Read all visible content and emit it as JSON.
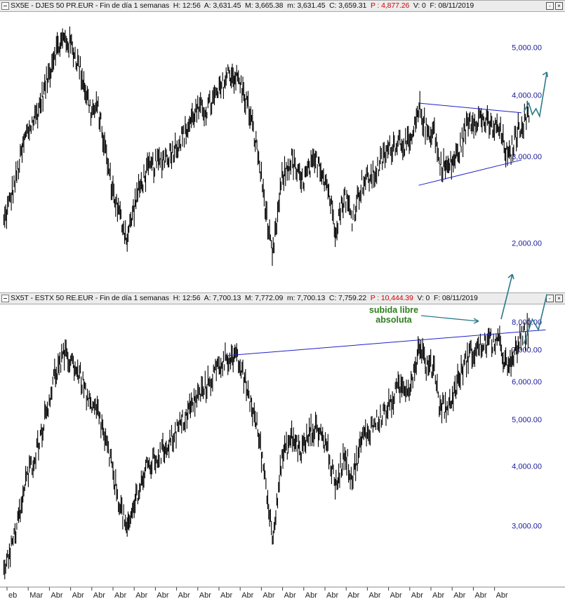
{
  "panels": [
    {
      "symbol": "SX5E",
      "name": "DJES 50 PR.EUR",
      "period": "Fin de día 1 semanas",
      "h_label": "H:",
      "h_value": "12:56",
      "a_label": "A:",
      "a_value": "3,631.45",
      "m_label": "M:",
      "m_value": "3,665.38",
      "mm_label": "m:",
      "mm_value": "3,631.45",
      "c_label": "C:",
      "c_value": "3,659.31",
      "p_label": "P :",
      "p_value": "4,877.26",
      "v_label": "V:",
      "v_value": "0",
      "f_label": "F:",
      "f_value": "08/11/2019",
      "close_btn": "×",
      "menu_btn": "-",
      "yticks": [
        "2,000.00",
        "3,000.00",
        "4,000.00",
        "5,000.00"
      ]
    },
    {
      "symbol": "SX5T",
      "name": "ESTX 50 RE.EUR",
      "period": "Fin de día 1 semanas",
      "h_label": "H:",
      "h_value": "12:56",
      "a_label": "A:",
      "a_value": "7,700.13",
      "m_label": "M:",
      "m_value": "7,772.09",
      "mm_label": "m:",
      "mm_value": "7,700.13",
      "c_label": "C:",
      "c_value": "7,759.22",
      "p_label": "P :",
      "p_value": "10,444.39",
      "v_label": "V:",
      "v_value": "0",
      "f_label": "F:",
      "f_value": "08/11/2019",
      "close_btn": "×",
      "menu_btn": "-",
      "yticks": [
        "3,000.00",
        "4,000.00",
        "5,000.00",
        "6,000.00",
        "7,000.00",
        "8,000.00"
      ]
    }
  ],
  "annotation": {
    "line1": "subida libre",
    "line2": "absoluta"
  },
  "xaxis": [
    "eb",
    "Mar",
    "Abr",
    "Abr",
    "Abr",
    "Abr",
    "Abr",
    "Abr",
    "Abr",
    "Abr",
    "Abr",
    "Abr",
    "Abr",
    "Abr",
    "Abr",
    "Abr",
    "Abr",
    "Abr",
    "Abr",
    "Abr",
    "Abr",
    "Abr",
    "Abr",
    "Abr"
  ],
  "colors": {
    "price": "#000000",
    "trendline": "#1f1fcc",
    "projection": "#2b7a8a",
    "axis_text": "#1a1a9a",
    "annotation": "#2e7d1e"
  },
  "chart_data": [
    {
      "type": "line",
      "title": "SX5E - DJES 50 PR.EUR - Fin de día 1 semanas",
      "xlabel": "",
      "ylabel": "",
      "scale": "log",
      "ylim": [
        1650,
        5900
      ],
      "x": [
        1998.1,
        1998.6,
        1999.0,
        1999.5,
        1999.9,
        2000.2,
        2000.6,
        2000.9,
        2001.3,
        2001.7,
        2002.0,
        2002.5,
        2002.8,
        2003.2,
        2003.6,
        2004.0,
        2004.6,
        2005.0,
        2005.6,
        2006.0,
        2006.5,
        2007.0,
        2007.4,
        2007.8,
        2008.2,
        2008.6,
        2008.9,
        2009.2,
        2009.6,
        2010.0,
        2010.4,
        2010.8,
        2011.1,
        2011.5,
        2011.8,
        2012.2,
        2012.5,
        2012.9,
        2013.4,
        2013.9,
        2014.4,
        2014.9,
        2015.3,
        2015.6,
        2015.9,
        2016.1,
        2016.5,
        2016.9,
        2017.3,
        2017.8,
        2018.2,
        2018.6,
        2018.96,
        2019.4,
        2019.85
      ],
      "y": [
        2200,
        2700,
        3300,
        3700,
        4300,
        4900,
        5200,
        5050,
        4450,
        3700,
        3750,
        2700,
        2350,
        2050,
        2500,
        2800,
        2950,
        3050,
        3350,
        3700,
        3750,
        4050,
        4450,
        4300,
        3800,
        3050,
        2400,
        1850,
        2700,
        2950,
        2650,
        2850,
        2950,
        2600,
        2150,
        2500,
        2250,
        2650,
        2750,
        3050,
        3250,
        3150,
        3750,
        3350,
        3400,
        2900,
        2850,
        3050,
        3550,
        3600,
        3450,
        3400,
        2950,
        3450,
        3650
      ],
      "series": [
        {
          "values_ref": "y"
        }
      ],
      "triangle": {
        "upper": [
          [
            2015.25,
            3850
          ],
          [
            2019.5,
            3680
          ]
        ],
        "lower": [
          [
            2015.25,
            2620
          ],
          [
            2019.5,
            2950
          ]
        ]
      },
      "yticks": [
        2000,
        3000,
        4000,
        5000
      ]
    },
    {
      "type": "line",
      "title": "SX5T - ESTX 50 RE.EUR - Fin de día 1 semanas",
      "xlabel": "",
      "ylabel": "",
      "scale": "log",
      "ylim": [
        2250,
        8700
      ],
      "x": [
        1998.1,
        1998.6,
        1999.0,
        1999.5,
        1999.9,
        2000.2,
        2000.6,
        2000.9,
        2001.3,
        2001.7,
        2002.0,
        2002.5,
        2002.8,
        2003.2,
        2003.6,
        2004.0,
        2004.6,
        2005.0,
        2005.6,
        2006.0,
        2006.5,
        2007.0,
        2007.4,
        2007.8,
        2008.2,
        2008.6,
        2008.9,
        2009.2,
        2009.6,
        2010.0,
        2010.4,
        2010.8,
        2011.1,
        2011.5,
        2011.8,
        2012.2,
        2012.5,
        2012.9,
        2013.4,
        2013.9,
        2014.4,
        2014.9,
        2015.3,
        2015.6,
        2015.9,
        2016.1,
        2016.5,
        2016.9,
        2017.3,
        2017.8,
        2018.2,
        2018.6,
        2018.96,
        2019.4,
        2019.85
      ],
      "y": [
        2450,
        2900,
        3700,
        4400,
        5300,
        6200,
        6800,
        6650,
        6100,
        5250,
        5200,
        4100,
        3500,
        2900,
        3500,
        3950,
        4250,
        4550,
        5050,
        5500,
        5900,
        6500,
        6800,
        6600,
        5700,
        4750,
        3800,
        2850,
        4150,
        4600,
        4300,
        4750,
        4800,
        4350,
        3600,
        4300,
        3750,
        4550,
        4900,
        5200,
        5800,
        5900,
        7200,
        6400,
        6500,
        5400,
        5300,
        6100,
        6800,
        7100,
        7300,
        7200,
        6300,
        7300,
        7750
      ],
      "resistance": [
        [
          2007.3,
          6800
        ],
        [
          2020.5,
          7700
        ]
      ],
      "yticks": [
        3000,
        4000,
        5000,
        6000,
        7000,
        8000
      ]
    }
  ]
}
